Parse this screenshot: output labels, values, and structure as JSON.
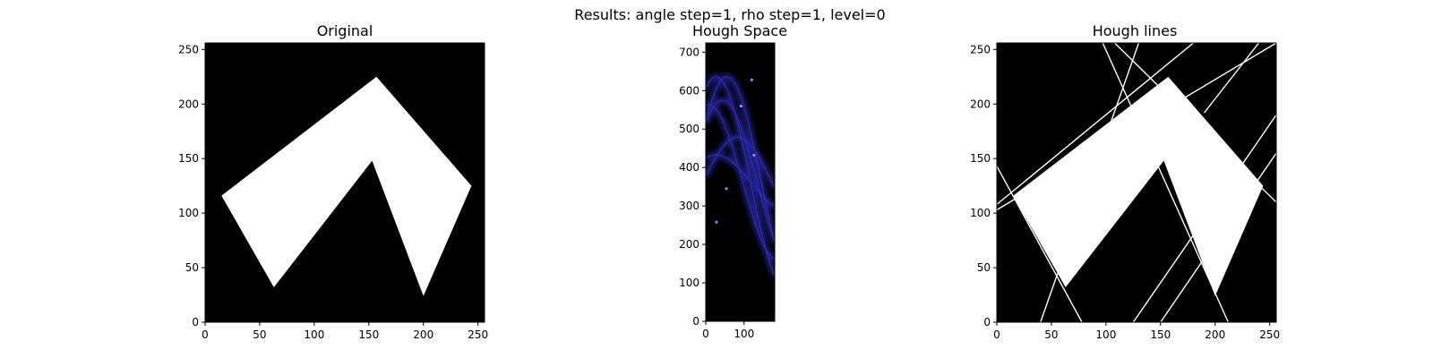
{
  "suptitle": "Results: angle step=1, rho step=1, level=0",
  "colors": {
    "background": "#000000",
    "foreground": "#ffffff",
    "hough_trace": "#3a3af0",
    "axis": "#000000"
  },
  "chart_data": [
    {
      "type": "image",
      "title": "Original",
      "xlim": [
        0,
        256
      ],
      "ylim": [
        256,
        0
      ],
      "xticks": [
        "0",
        "50",
        "100",
        "150",
        "200",
        "250"
      ],
      "yticks": [
        "0",
        "50",
        "100",
        "150",
        "200",
        "250"
      ],
      "shape_vertices": [
        [
          15,
          116
        ],
        [
          63,
          32
        ],
        [
          153,
          148
        ],
        [
          200,
          24
        ],
        [
          244,
          125
        ],
        [
          157,
          225
        ]
      ]
    },
    {
      "type": "heatmap",
      "title": "Hough Space",
      "xlim": [
        0,
        180
      ],
      "ylim": [
        724,
        0
      ],
      "xticks": [
        "0",
        "100"
      ],
      "yticks": [
        "0",
        "100",
        "200",
        "300",
        "400",
        "500",
        "600",
        "700"
      ],
      "colormap": "black-to-blue",
      "peaks": [
        [
          28,
          258
        ],
        [
          54,
          345
        ],
        [
          92,
          560
        ],
        [
          120,
          628
        ],
        [
          126,
          432
        ]
      ]
    },
    {
      "type": "image",
      "title": "Hough lines",
      "xlim": [
        0,
        256
      ],
      "ylim": [
        256,
        0
      ],
      "xticks": [
        "0",
        "50",
        "100",
        "150",
        "200",
        "250"
      ],
      "yticks": [
        "0",
        "50",
        "100",
        "150",
        "200",
        "250"
      ],
      "shape_vertices": [
        [
          15,
          116
        ],
        [
          63,
          32
        ],
        [
          153,
          148
        ],
        [
          200,
          24
        ],
        [
          244,
          125
        ],
        [
          157,
          225
        ]
      ],
      "detected_lines": [
        [
          [
            0,
            143
          ],
          [
            78,
            0
          ]
        ],
        [
          [
            40,
            0
          ],
          [
            130,
            256
          ]
        ],
        [
          [
            0,
            103
          ],
          [
            256,
            256
          ]
        ],
        [
          [
            0,
            108
          ],
          [
            180,
            256
          ]
        ],
        [
          [
            150,
            0
          ],
          [
            256,
            155
          ]
        ],
        [
          [
            212,
            0
          ],
          [
            97,
            256
          ]
        ],
        [
          [
            256,
            110
          ],
          [
            108,
            256
          ]
        ],
        [
          [
            190,
            192
          ],
          [
            240,
            256
          ]
        ],
        [
          [
            125,
            0
          ],
          [
            256,
            190
          ]
        ]
      ]
    }
  ]
}
